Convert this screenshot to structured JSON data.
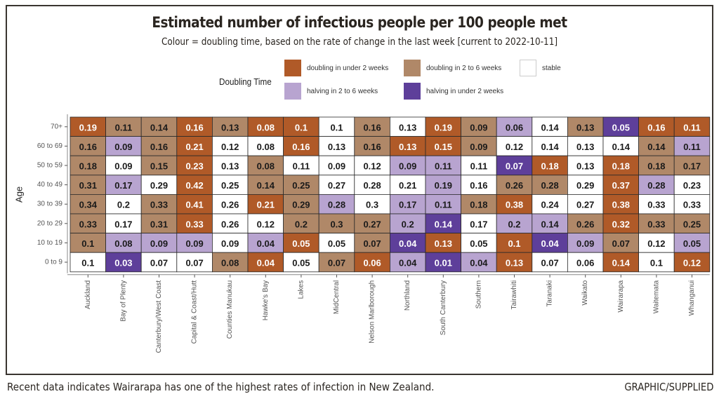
{
  "caption": "Recent data indicates Wairarapa has one of the highest rates of infection in New Zealand.",
  "credit": "GRAPHIC/SUPPLIED",
  "chart_data": {
    "type": "heatmap",
    "title": "Estimated number of infectious people per 100 people met",
    "subtitle": "Colour = doubling time, based on the rate of change in the last week [current to 2022-10-11]",
    "xlabel": "",
    "ylabel": "Age",
    "legend": {
      "title": "Doubling Time",
      "placement": "top-center",
      "entries": [
        {
          "key": "D",
          "label": "doubling in under 2 weeks",
          "color": "#b05a28",
          "text_color": "#ffffff"
        },
        {
          "key": "d",
          "label": "doubling in 2 to 6 weeks",
          "color": "#b08868",
          "text_color": "#1a1a1a"
        },
        {
          "key": "S",
          "label": "stable",
          "color": "#ffffff",
          "text_color": "#1a1a1a"
        },
        {
          "key": "h",
          "label": "halving in 2 to 6 weeks",
          "color": "#b8a4d0",
          "text_color": "#1a1a1a"
        },
        {
          "key": "H",
          "label": "halving in under 2 weeks",
          "color": "#5e3f9a",
          "text_color": "#ffffff"
        }
      ]
    },
    "x": [
      "Auckland",
      "Bay of Plenty",
      "Canterbury/West Coast",
      "Capital & Coast/Hutt",
      "Counties Manukau",
      "Hawke's Bay",
      "Lakes",
      "MidCentral",
      "Nelson Marlborough",
      "Northland",
      "South Canterbury",
      "Southern",
      "Tairawhiti",
      "Taranaki",
      "Waikato",
      "Wairarapa",
      "Waitemata",
      "Whanganui"
    ],
    "y": [
      "70+",
      "60 to 69",
      "50 to 59",
      "40 to 49",
      "30 to 39",
      "20 to 29",
      "10 to 19",
      "0 to 9"
    ],
    "values": [
      [
        0.19,
        0.11,
        0.14,
        0.16,
        0.13,
        0.08,
        0.1,
        0.1,
        0.16,
        0.13,
        0.19,
        0.09,
        0.06,
        0.14,
        0.13,
        0.05,
        0.16,
        0.11
      ],
      [
        0.16,
        0.09,
        0.16,
        0.21,
        0.12,
        0.08,
        0.16,
        0.13,
        0.16,
        0.13,
        0.15,
        0.09,
        0.12,
        0.14,
        0.13,
        0.14,
        0.14,
        0.11
      ],
      [
        0.18,
        0.09,
        0.15,
        0.23,
        0.13,
        0.08,
        0.11,
        0.09,
        0.12,
        0.09,
        0.11,
        0.11,
        0.07,
        0.18,
        0.13,
        0.18,
        0.18,
        0.17
      ],
      [
        0.31,
        0.17,
        0.29,
        0.42,
        0.25,
        0.14,
        0.25,
        0.27,
        0.28,
        0.21,
        0.19,
        0.16,
        0.26,
        0.28,
        0.29,
        0.37,
        0.28,
        0.23
      ],
      [
        0.34,
        0.2,
        0.33,
        0.41,
        0.26,
        0.21,
        0.29,
        0.28,
        0.3,
        0.17,
        0.11,
        0.18,
        0.38,
        0.24,
        0.27,
        0.38,
        0.33,
        0.33
      ],
      [
        0.33,
        0.17,
        0.31,
        0.33,
        0.26,
        0.12,
        0.2,
        0.3,
        0.27,
        0.2,
        0.14,
        0.17,
        0.2,
        0.14,
        0.26,
        0.32,
        0.33,
        0.25
      ],
      [
        0.1,
        0.08,
        0.09,
        0.09,
        0.09,
        0.04,
        0.05,
        0.05,
        0.07,
        0.04,
        0.13,
        0.05,
        0.1,
        0.04,
        0.09,
        0.07,
        0.12,
        0.05
      ],
      [
        0.1,
        0.03,
        0.07,
        0.07,
        0.08,
        0.04,
        0.05,
        0.07,
        0.06,
        0.04,
        0.01,
        0.04,
        0.13,
        0.07,
        0.06,
        0.14,
        0.1,
        0.12
      ]
    ],
    "categories": [
      [
        "D",
        "d",
        "d",
        "D",
        "d",
        "D",
        "D",
        "S",
        "d",
        "S",
        "D",
        "d",
        "h",
        "S",
        "d",
        "H",
        "D",
        "D"
      ],
      [
        "d",
        "h",
        "d",
        "D",
        "S",
        "S",
        "D",
        "S",
        "d",
        "D",
        "D",
        "d",
        "S",
        "S",
        "S",
        "S",
        "d",
        "h"
      ],
      [
        "d",
        "S",
        "d",
        "D",
        "S",
        "d",
        "S",
        "S",
        "S",
        "h",
        "h",
        "S",
        "H",
        "D",
        "S",
        "D",
        "d",
        "d"
      ],
      [
        "d",
        "h",
        "S",
        "D",
        "S",
        "d",
        "d",
        "S",
        "S",
        "S",
        "h",
        "S",
        "d",
        "d",
        "S",
        "D",
        "h",
        "S"
      ],
      [
        "d",
        "S",
        "d",
        "D",
        "S",
        "D",
        "d",
        "h",
        "S",
        "h",
        "h",
        "d",
        "D",
        "S",
        "S",
        "D",
        "S",
        "S"
      ],
      [
        "d",
        "S",
        "d",
        "D",
        "S",
        "S",
        "d",
        "d",
        "d",
        "h",
        "H",
        "S",
        "h",
        "h",
        "d",
        "D",
        "d",
        "d"
      ],
      [
        "d",
        "h",
        "h",
        "h",
        "S",
        "h",
        "D",
        "S",
        "d",
        "H",
        "D",
        "S",
        "D",
        "H",
        "h",
        "d",
        "S",
        "h"
      ],
      [
        "S",
        "H",
        "S",
        "S",
        "d",
        "D",
        "S",
        "d",
        "D",
        "h",
        "H",
        "h",
        "D",
        "S",
        "S",
        "D",
        "S",
        "D"
      ]
    ]
  }
}
